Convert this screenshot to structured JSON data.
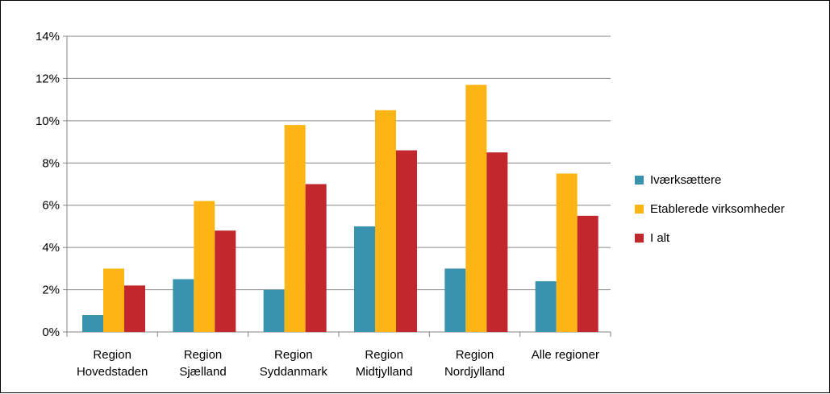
{
  "chart_data": {
    "type": "bar",
    "title": "",
    "xlabel": "",
    "ylabel": "",
    "categories": [
      [
        "Region",
        "Hovedstaden"
      ],
      [
        "Region",
        "Sjælland"
      ],
      [
        "Region",
        "Syddanmark"
      ],
      [
        "Region",
        "Midtjylland"
      ],
      [
        "Region",
        "Nordjylland"
      ],
      [
        "Alle regioner"
      ]
    ],
    "series": [
      {
        "name": "Iværksættere",
        "color": "#3A93AE",
        "values": [
          0.8,
          2.5,
          2.0,
          5.0,
          3.0,
          2.4
        ]
      },
      {
        "name": "Etablerede virksomheder",
        "color": "#FDB515",
        "values": [
          3.0,
          6.2,
          9.8,
          10.5,
          11.7,
          7.5
        ]
      },
      {
        "name": "I alt",
        "color": "#C1272D",
        "values": [
          2.2,
          4.8,
          7.0,
          8.6,
          8.5,
          5.5
        ]
      }
    ],
    "ylim": [
      0,
      14
    ],
    "y_ticks": [
      0,
      2,
      4,
      6,
      8,
      10,
      12,
      14
    ],
    "y_tick_format": "%",
    "grid": true,
    "legend_position": "right"
  }
}
